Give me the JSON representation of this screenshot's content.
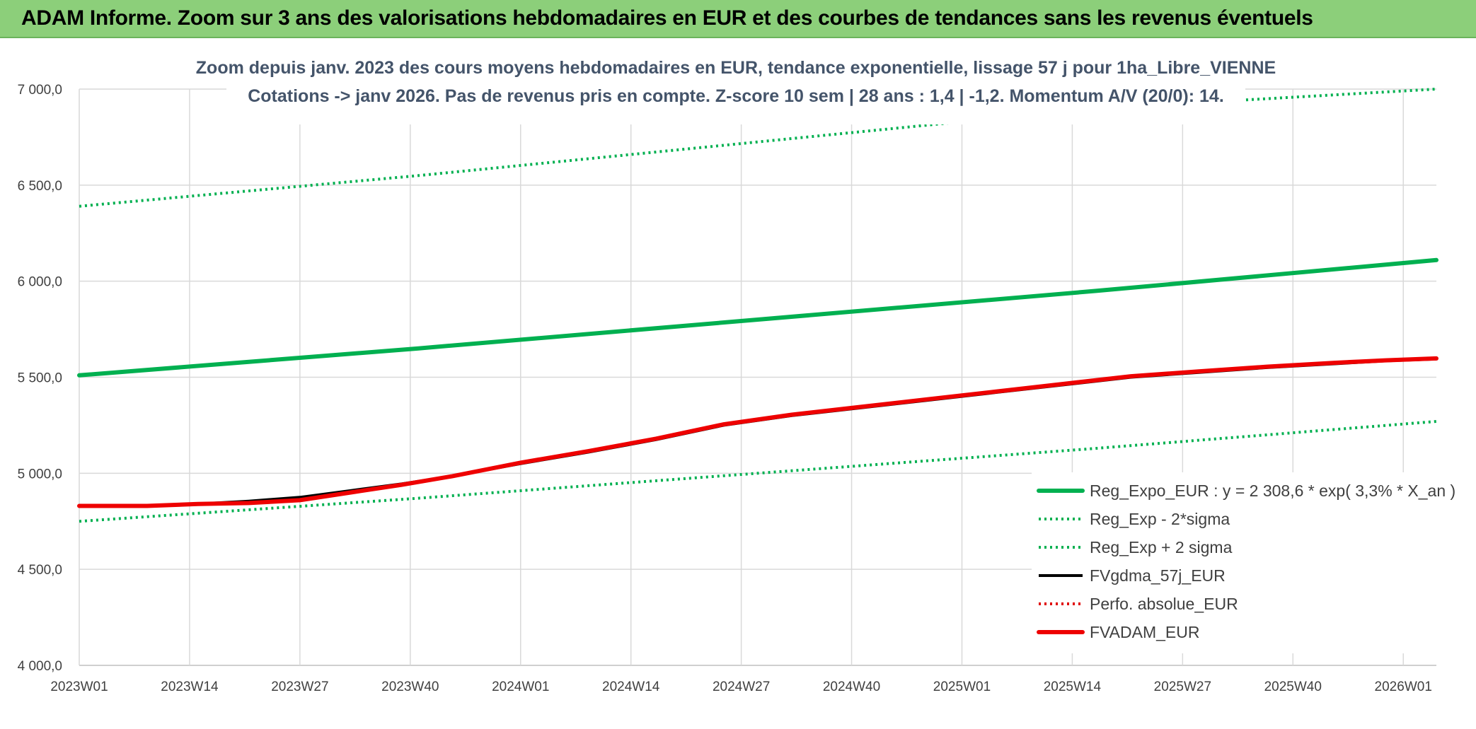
{
  "banner": {
    "title": "ADAM Informe. Zoom sur 3 ans des valorisations hebdomadaires en EUR et des courbes de tendances sans les revenus éventuels"
  },
  "chart_data": {
    "type": "line",
    "title_line1": "Zoom depuis janv. 2023 des cours moyens hebdomadaires en EUR, tendance exponentielle, lissage 57 j pour 1ha_Libre_VIENNE",
    "title_line2": "Cotations -> janv 2026. Pas de revenus pris en compte. Z-score 10 sem | 28 ans : 1,4 | -1,2. Momentum A/V (20/0): 14.",
    "x_tick_labels": [
      "2023W01",
      "2023W14",
      "2023W27",
      "2023W40",
      "2024W01",
      "2024W14",
      "2024W27",
      "2024W40",
      "2025W01",
      "2025W14",
      "2025W27",
      "2025W40",
      "2026W01"
    ],
    "x_range_weeks": [
      0,
      160
    ],
    "y_tick_labels": [
      "4 000,0",
      "4 500,0",
      "5 000,0",
      "5 500,0",
      "6 000,0",
      "6 500,0",
      "7 000,0"
    ],
    "ylim": [
      4000,
      7000
    ],
    "grid": true,
    "legend_position": "bottom-right",
    "series": [
      {
        "name": "Reg_Expo_EUR : y = 2 308,6 * exp( 3,3% *  X_an )",
        "color": "#00b050",
        "style": "solid-thick",
        "points": [
          [
            0,
            5510
          ],
          [
            40,
            5650
          ],
          [
            80,
            5800
          ],
          [
            120,
            5950
          ],
          [
            160,
            6110
          ]
        ]
      },
      {
        "name": "Reg_Exp - 2*sigma",
        "color": "#00b050",
        "style": "dotted",
        "points": [
          [
            0,
            4750
          ],
          [
            40,
            4870
          ],
          [
            80,
            5000
          ],
          [
            120,
            5130
          ],
          [
            160,
            5270
          ]
        ]
      },
      {
        "name": "Reg_Exp + 2 sigma",
        "color": "#00b050",
        "style": "dotted",
        "points": [
          [
            0,
            6390
          ],
          [
            40,
            6550
          ],
          [
            80,
            6725
          ],
          [
            120,
            6900
          ],
          [
            160,
            7000
          ]
        ]
      },
      {
        "name": "FVgdma_57j_EUR",
        "color": "#000000",
        "style": "solid",
        "points": [
          [
            0,
            4830
          ],
          [
            8,
            4830
          ],
          [
            14,
            4840
          ],
          [
            20,
            4855
          ],
          [
            26,
            4875
          ],
          [
            32,
            4910
          ],
          [
            38,
            4945
          ],
          [
            44,
            4985
          ],
          [
            52,
            5050
          ],
          [
            60,
            5110
          ],
          [
            68,
            5175
          ],
          [
            76,
            5250
          ],
          [
            84,
            5300
          ],
          [
            92,
            5340
          ],
          [
            100,
            5380
          ],
          [
            108,
            5420
          ],
          [
            116,
            5460
          ],
          [
            124,
            5500
          ],
          [
            132,
            5525
          ],
          [
            140,
            5550
          ],
          [
            148,
            5570
          ],
          [
            154,
            5585
          ],
          [
            160,
            5595
          ]
        ]
      },
      {
        "name": "Perfo. absolue_EUR",
        "color": "#e00000",
        "style": "dotted",
        "points": [
          [
            0,
            4830
          ],
          [
            8,
            4830
          ],
          [
            14,
            4840
          ],
          [
            20,
            4845
          ],
          [
            26,
            4860
          ],
          [
            32,
            4900
          ],
          [
            38,
            4940
          ],
          [
            44,
            4985
          ],
          [
            52,
            5055
          ],
          [
            60,
            5115
          ],
          [
            68,
            5180
          ],
          [
            76,
            5255
          ],
          [
            84,
            5305
          ],
          [
            92,
            5345
          ],
          [
            100,
            5385
          ],
          [
            108,
            5425
          ],
          [
            116,
            5465
          ],
          [
            124,
            5505
          ],
          [
            132,
            5530
          ],
          [
            140,
            5555
          ],
          [
            148,
            5575
          ],
          [
            154,
            5588
          ],
          [
            160,
            5598
          ]
        ]
      },
      {
        "name": "FVADAM_EUR",
        "color": "#ee0000",
        "style": "solid-thick",
        "points": [
          [
            0,
            4830
          ],
          [
            8,
            4830
          ],
          [
            14,
            4840
          ],
          [
            20,
            4845
          ],
          [
            26,
            4860
          ],
          [
            32,
            4900
          ],
          [
            38,
            4940
          ],
          [
            44,
            4985
          ],
          [
            52,
            5055
          ],
          [
            60,
            5115
          ],
          [
            68,
            5180
          ],
          [
            76,
            5255
          ],
          [
            84,
            5305
          ],
          [
            92,
            5345
          ],
          [
            100,
            5385
          ],
          [
            108,
            5425
          ],
          [
            116,
            5465
          ],
          [
            124,
            5505
          ],
          [
            132,
            5530
          ],
          [
            140,
            5555
          ],
          [
            148,
            5575
          ],
          [
            154,
            5588
          ],
          [
            160,
            5598
          ]
        ]
      }
    ]
  }
}
